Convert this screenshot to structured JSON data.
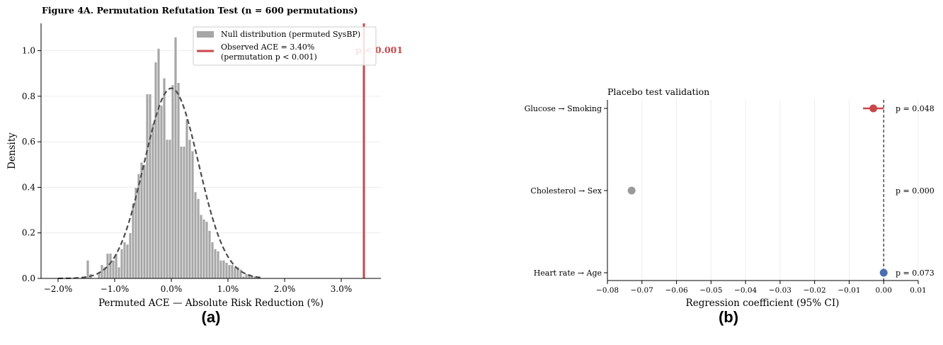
{
  "chart_data": [
    {
      "type": "bar",
      "title": "Figure 4A. Permutation Refutation Test (n = 600 permutations)",
      "xlabel": "Permuted ACE — Absolute Risk Reduction (%)",
      "ylabel": "Density",
      "xlim": [
        -2.3,
        3.7
      ],
      "ylim": [
        0,
        1.12
      ],
      "x_ticks": [
        -2.0,
        -1.0,
        0.0,
        1.0,
        2.0,
        3.0
      ],
      "x_tick_labels": [
        "−2.0%",
        "−1.0%",
        "0.0%",
        "1.0%",
        "2.0%",
        "3.0%"
      ],
      "y_ticks": [
        0.0,
        0.2,
        0.4,
        0.6,
        0.8,
        1.0
      ],
      "y_tick_labels": [
        "0.0",
        "0.2",
        "0.4",
        "0.6",
        "0.8",
        "1.0"
      ],
      "grid": "horizontal",
      "legend_position": "top-right",
      "bin_width": 0.05,
      "bins": [
        {
          "x0": -1.5,
          "density": 0.08
        },
        {
          "x0": -1.45,
          "density": 0.02
        },
        {
          "x0": -1.3,
          "density": 0.03
        },
        {
          "x0": -1.25,
          "density": 0.06
        },
        {
          "x0": -1.2,
          "density": 0.05
        },
        {
          "x0": -1.15,
          "density": 0.11
        },
        {
          "x0": -1.1,
          "density": 0.11
        },
        {
          "x0": -1.05,
          "density": 0.08
        },
        {
          "x0": -1.0,
          "density": 0.11
        },
        {
          "x0": -0.95,
          "density": 0.05
        },
        {
          "x0": -0.9,
          "density": 0.13
        },
        {
          "x0": -0.85,
          "density": 0.16
        },
        {
          "x0": -0.8,
          "density": 0.15
        },
        {
          "x0": -0.75,
          "density": 0.2
        },
        {
          "x0": -0.7,
          "density": 0.33
        },
        {
          "x0": -0.65,
          "density": 0.4
        },
        {
          "x0": -0.6,
          "density": 0.46
        },
        {
          "x0": -0.55,
          "density": 0.51
        },
        {
          "x0": -0.5,
          "density": 0.5
        },
        {
          "x0": -0.45,
          "density": 0.81
        },
        {
          "x0": -0.4,
          "density": 0.81
        },
        {
          "x0": -0.35,
          "density": 0.68
        },
        {
          "x0": -0.3,
          "density": 0.95
        },
        {
          "x0": -0.25,
          "density": 1.01
        },
        {
          "x0": -0.2,
          "density": 0.76
        },
        {
          "x0": -0.15,
          "density": 0.88
        },
        {
          "x0": -0.1,
          "density": 0.61
        },
        {
          "x0": -0.05,
          "density": 0.61
        },
        {
          "x0": 0.0,
          "density": 0.85
        },
        {
          "x0": 0.05,
          "density": 1.06
        },
        {
          "x0": 0.1,
          "density": 0.86
        },
        {
          "x0": 0.15,
          "density": 0.58
        },
        {
          "x0": 0.2,
          "density": 0.58
        },
        {
          "x0": 0.25,
          "density": 0.7
        },
        {
          "x0": 0.3,
          "density": 0.61
        },
        {
          "x0": 0.35,
          "density": 0.56
        },
        {
          "x0": 0.4,
          "density": 0.38
        },
        {
          "x0": 0.45,
          "density": 0.35
        },
        {
          "x0": 0.5,
          "density": 0.28
        },
        {
          "x0": 0.55,
          "density": 0.26
        },
        {
          "x0": 0.6,
          "density": 0.25
        },
        {
          "x0": 0.65,
          "density": 0.21
        },
        {
          "x0": 0.7,
          "density": 0.16
        },
        {
          "x0": 0.75,
          "density": 0.13
        },
        {
          "x0": 0.8,
          "density": 0.12
        },
        {
          "x0": 0.85,
          "density": 0.08
        },
        {
          "x0": 0.9,
          "density": 0.08
        },
        {
          "x0": 0.95,
          "density": 0.07
        },
        {
          "x0": 1.0,
          "density": 0.06
        },
        {
          "x0": 1.05,
          "density": 0.06
        },
        {
          "x0": 1.1,
          "density": 0.05
        },
        {
          "x0": 1.15,
          "density": 0.05
        },
        {
          "x0": 1.2,
          "density": 0.04
        },
        {
          "x0": 1.25,
          "density": 0.01
        },
        {
          "x0": 1.3,
          "density": 0.02
        },
        {
          "x0": 1.35,
          "density": 0.02
        },
        {
          "x0": 1.4,
          "density": 0.01
        },
        {
          "x0": 1.45,
          "density": 0.01
        }
      ],
      "density_curve": {
        "mean": 0.0,
        "sd": 0.48,
        "peak": 0.835
      },
      "observed_value": 3.4,
      "observed_annotation": "p < 0.001",
      "legend": [
        {
          "label": "Null distribution (permuted SysBP)",
          "kind": "patch",
          "color": "#a6a6a6"
        },
        {
          "label": "Observed ACE = 3.40%",
          "label2": "(permutation p < 0.001)",
          "kind": "line",
          "color": "#c9474b"
        }
      ],
      "colors": {
        "bars": "#a6a6a6",
        "curve": "#4d4d4d",
        "observed": "#c9474b",
        "grid": "#ececec"
      },
      "panel_label": "(a)"
    },
    {
      "type": "scatter",
      "title": "Placebo test validation",
      "xlabel": "Regression coefficient (95% CI)",
      "xlim": [
        -0.08,
        0.01
      ],
      "x_ticks": [
        -0.08,
        -0.07,
        -0.06,
        -0.05,
        -0.04,
        -0.03,
        -0.02,
        -0.01,
        0.0,
        0.01
      ],
      "x_tick_labels": [
        "−0.08",
        "−0.07",
        "−0.06",
        "−0.05",
        "−0.04",
        "−0.03",
        "−0.02",
        "−0.01",
        "0.00",
        "0.01"
      ],
      "grid": "vertical",
      "reference_line": 0.0,
      "points": [
        {
          "label": "Glucose → Smoking",
          "estimate": -0.003,
          "ci": [
            -0.006,
            0.0
          ],
          "p_label": "p = 0.048",
          "color": "#c9474b"
        },
        {
          "label": "Cholesterol → Sex",
          "estimate": -0.073,
          "ci": [
            -0.073,
            -0.073
          ],
          "p_label": "p = 0.000",
          "color": "#999999"
        },
        {
          "label": "Heart rate → Age",
          "estimate": 0.0,
          "ci": [
            0.0,
            0.0
          ],
          "p_label": "p = 0.073",
          "color": "#4a6fb0"
        }
      ],
      "panel_label": "(b)"
    }
  ]
}
